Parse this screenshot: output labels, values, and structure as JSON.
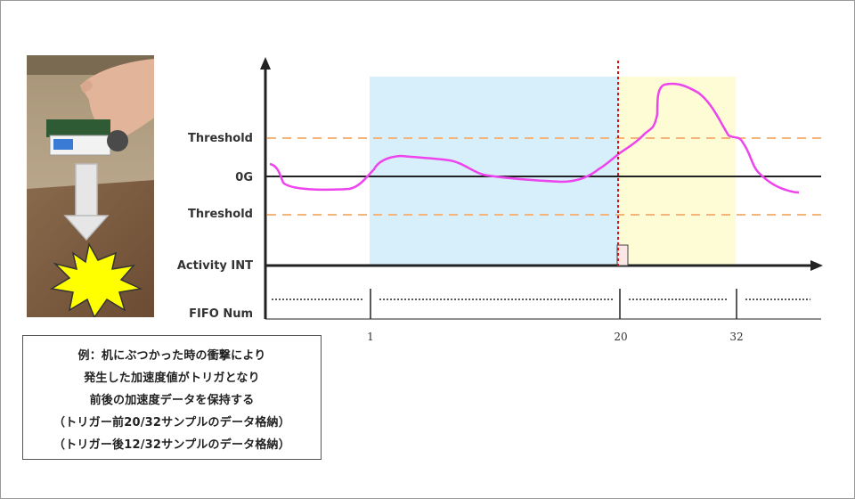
{
  "labels": {
    "threshold_upper": "Threshold",
    "zero_g": "0G",
    "threshold_lower": "Threshold",
    "activity_int": "Activity INT",
    "fifo_num": "FIFO Num"
  },
  "ticks": {
    "first": "1",
    "trigger": "20",
    "last": "32"
  },
  "caption": {
    "line1": "例：机にぶつかった時の衝撃により",
    "line2": "発生した加速度値がトリガとなり",
    "line3": "前後の加速度データを保持する",
    "line4": "（トリガー前20/32サンプルのデータ格納）",
    "line5": "（トリガー後12/32サンプルのデータ格納）"
  },
  "colors": {
    "pre_trigger_region": "#d6effa",
    "post_trigger_region": "#fdfcd4",
    "signal": "#ee44ee",
    "threshold_line": "#f5b47a",
    "trigger_marker": "#dd1111",
    "axis": "#222222",
    "impact_burst": "#ffff00"
  },
  "icons": {
    "photo": "hand-holding-sensor-board-photo",
    "arrow": "down-arrow-icon",
    "impact": "impact-burst-icon"
  }
}
